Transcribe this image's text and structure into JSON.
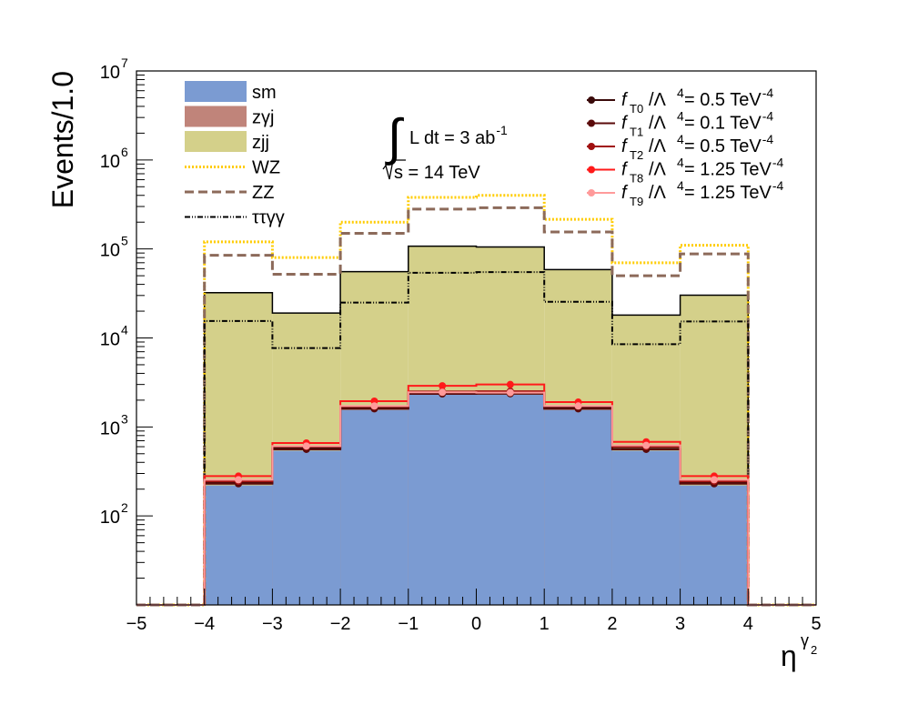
{
  "chart_data": {
    "type": "bar",
    "xlabel": "η",
    "xlabel_sup": "γ",
    "xlabel_sup_sub": "2",
    "ylabel": "Events/1.0",
    "xlim": [
      -5,
      5
    ],
    "ylim_log": [
      10,
      10000000
    ],
    "log_y": true,
    "bins": [
      -5,
      -4,
      -3,
      -2,
      -1,
      0,
      1,
      2,
      3,
      4,
      5
    ],
    "x_ticks": [
      "−5",
      "−4",
      "−3",
      "−2",
      "−1",
      "0",
      "1",
      "2",
      "3",
      "4",
      "5"
    ],
    "y_ticks": [
      {
        "base": "10",
        "exp": "2",
        "value": 100
      },
      {
        "base": "10",
        "exp": "3",
        "value": 1000
      },
      {
        "base": "10",
        "exp": "4",
        "value": 10000
      },
      {
        "base": "10",
        "exp": "5",
        "value": 100000
      },
      {
        "base": "10",
        "exp": "6",
        "value": 1000000
      },
      {
        "base": "10",
        "exp": "7",
        "value": 10000000
      }
    ],
    "stack": [
      {
        "name": "sm",
        "color": "#7b9bd2",
        "values": [
          0,
          220,
          540,
          1550,
          2300,
          2300,
          1550,
          540,
          220,
          0
        ]
      },
      {
        "name": "zγj",
        "color": "#c0847a",
        "values": [
          0,
          0,
          0,
          0,
          0,
          0,
          0,
          0,
          0,
          0
        ]
      },
      {
        "name": "zjj",
        "color": "#d4d08a",
        "values": [
          0,
          32000,
          18500,
          54000,
          105000,
          103000,
          57000,
          17500,
          30000,
          0
        ]
      }
    ],
    "overlays": [
      {
        "name": "WZ",
        "color": "#ffcc00",
        "style": "dotted",
        "values": [
          0,
          120000,
          80000,
          200000,
          380000,
          400000,
          215000,
          70000,
          110000,
          0
        ]
      },
      {
        "name": "ZZ",
        "color": "#8c6a5a",
        "style": "dashed",
        "values": [
          0,
          85000,
          52000,
          150000,
          280000,
          290000,
          155000,
          50000,
          88000,
          0
        ]
      },
      {
        "name": "ττγγ",
        "color": "#000000",
        "style": "dashdot",
        "values": [
          0,
          15500,
          7700,
          25000,
          54000,
          55000,
          25500,
          8500,
          15300,
          0
        ]
      }
    ],
    "signals": [
      {
        "name": "f_T0/Λ^4 = 0.5 TeV^-4",
        "label_sub": "T0",
        "label_val": "/Λ",
        "label_eq": " = 0.5 TeV",
        "color": "#3a0a0a",
        "values": [
          0,
          235,
          575,
          1630,
          2400,
          2420,
          1640,
          570,
          235,
          0
        ]
      },
      {
        "name": "f_T1/Λ^4 = 0.1 TeV^-4",
        "label_sub": "T1",
        "label_val": "/Λ",
        "label_eq": " = 0.1 TeV",
        "color": "#5a0a0a",
        "values": [
          0,
          230,
          560,
          1600,
          2350,
          2360,
          1600,
          560,
          230,
          0
        ]
      },
      {
        "name": "f_T2/Λ^4 = 0.5 TeV^-4",
        "label_sub": "T2",
        "label_val": "/Λ",
        "label_eq": " = 0.5 TeV",
        "color": "#a00f0f",
        "values": [
          0,
          245,
          600,
          1700,
          2500,
          2520,
          1710,
          600,
          245,
          0
        ]
      },
      {
        "name": "f_T8/Λ^4 = 1.25 TeV^-4",
        "label_sub": "T8",
        "label_val": "/Λ",
        "label_eq": " = 1.25 TeV",
        "color": "#ff1a1a",
        "values": [
          0,
          280,
          660,
          1950,
          2900,
          3000,
          1900,
          680,
          280,
          0
        ]
      },
      {
        "name": "f_T9/Λ^4 = 1.25 TeV^-4",
        "label_sub": "T9",
        "label_val": "/Λ",
        "label_eq": " = 1.25 TeV",
        "color": "#ff9a9a",
        "values": [
          0,
          255,
          610,
          1720,
          2450,
          2430,
          1720,
          620,
          255,
          0
        ]
      }
    ],
    "annotation": {
      "integral_text": "L dt = 3 ab",
      "integral_sup": "-1",
      "sqrt_text": "s = 14 TeV"
    },
    "legend_left": [
      {
        "label": "sm",
        "color": "#7b9bd2",
        "kind": "fill"
      },
      {
        "label": "zγj",
        "color": "#c0847a",
        "kind": "fill"
      },
      {
        "label": "zjj",
        "color": "#d4d08a",
        "kind": "fill"
      },
      {
        "label": "WZ",
        "color": "#ffcc00",
        "kind": "dotted"
      },
      {
        "label": "ZZ",
        "color": "#8c6a5a",
        "kind": "dashed"
      },
      {
        "label": "ττγγ",
        "color": "#000000",
        "kind": "dashdot"
      }
    ]
  }
}
